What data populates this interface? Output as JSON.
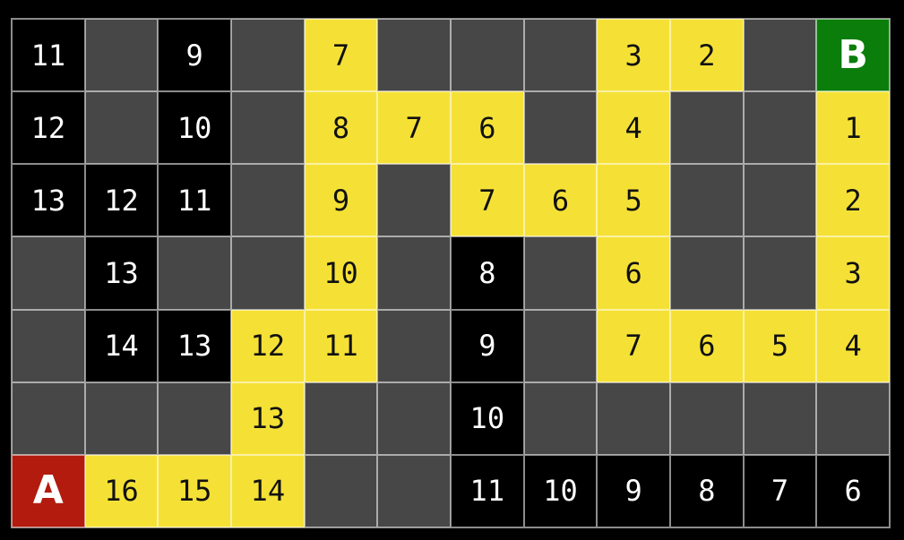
{
  "page": {
    "background": "#000000"
  },
  "grid": {
    "rows": 7,
    "cols": 12,
    "start_label": "A",
    "goal_label": "B",
    "colors": {
      "page_background": "#000000",
      "empty": "#474747",
      "explored": "#000000",
      "path": "#f5e136",
      "start": "#b21b0e",
      "goal": "#0b7d0b",
      "grid_line": "rgba(255,255,255,0.55)",
      "explored_text": "#ffffff",
      "path_text": "#111111",
      "start_goal_text": "#ffffff"
    },
    "cells": [
      [
        [
          "11",
          "explored"
        ],
        [
          "",
          "empty"
        ],
        [
          "9",
          "explored"
        ],
        [
          "",
          "empty"
        ],
        [
          "7",
          "path"
        ],
        [
          "",
          "empty"
        ],
        [
          "",
          "empty"
        ],
        [
          "",
          "empty"
        ],
        [
          "3",
          "path"
        ],
        [
          "2",
          "path"
        ],
        [
          "",
          "empty"
        ],
        [
          "B",
          "goal"
        ]
      ],
      [
        [
          "12",
          "explored"
        ],
        [
          "",
          "empty"
        ],
        [
          "10",
          "explored"
        ],
        [
          "",
          "empty"
        ],
        [
          "8",
          "path"
        ],
        [
          "7",
          "path"
        ],
        [
          "6",
          "path"
        ],
        [
          "",
          "empty"
        ],
        [
          "4",
          "path"
        ],
        [
          "",
          "empty"
        ],
        [
          "",
          "empty"
        ],
        [
          "1",
          "path"
        ]
      ],
      [
        [
          "13",
          "explored"
        ],
        [
          "12",
          "explored"
        ],
        [
          "11",
          "explored"
        ],
        [
          "",
          "empty"
        ],
        [
          "9",
          "path"
        ],
        [
          "",
          "empty"
        ],
        [
          "7",
          "path"
        ],
        [
          "6",
          "path"
        ],
        [
          "5",
          "path"
        ],
        [
          "",
          "empty"
        ],
        [
          "",
          "empty"
        ],
        [
          "2",
          "path"
        ]
      ],
      [
        [
          "",
          "empty"
        ],
        [
          "13",
          "explored"
        ],
        [
          "",
          "empty"
        ],
        [
          "",
          "empty"
        ],
        [
          "10",
          "path"
        ],
        [
          "",
          "empty"
        ],
        [
          "8",
          "explored"
        ],
        [
          "",
          "empty"
        ],
        [
          "6",
          "path"
        ],
        [
          "",
          "empty"
        ],
        [
          "",
          "empty"
        ],
        [
          "3",
          "path"
        ]
      ],
      [
        [
          "",
          "empty"
        ],
        [
          "14",
          "explored"
        ],
        [
          "13",
          "explored"
        ],
        [
          "12",
          "path"
        ],
        [
          "11",
          "path"
        ],
        [
          "",
          "empty"
        ],
        [
          "9",
          "explored"
        ],
        [
          "",
          "empty"
        ],
        [
          "7",
          "path"
        ],
        [
          "6",
          "path"
        ],
        [
          "5",
          "path"
        ],
        [
          "4",
          "path"
        ]
      ],
      [
        [
          "",
          "empty"
        ],
        [
          "",
          "empty"
        ],
        [
          "",
          "empty"
        ],
        [
          "13",
          "path"
        ],
        [
          "",
          "empty"
        ],
        [
          "",
          "empty"
        ],
        [
          "10",
          "explored"
        ],
        [
          "",
          "empty"
        ],
        [
          "",
          "empty"
        ],
        [
          "",
          "empty"
        ],
        [
          "",
          "empty"
        ],
        [
          "",
          "empty"
        ]
      ],
      [
        [
          "A",
          "start"
        ],
        [
          "16",
          "path"
        ],
        [
          "15",
          "path"
        ],
        [
          "14",
          "path"
        ],
        [
          "",
          "empty"
        ],
        [
          "",
          "empty"
        ],
        [
          "11",
          "explored"
        ],
        [
          "10",
          "explored"
        ],
        [
          "9",
          "explored"
        ],
        [
          "8",
          "explored"
        ],
        [
          "7",
          "explored"
        ],
        [
          "6",
          "explored"
        ]
      ]
    ]
  }
}
